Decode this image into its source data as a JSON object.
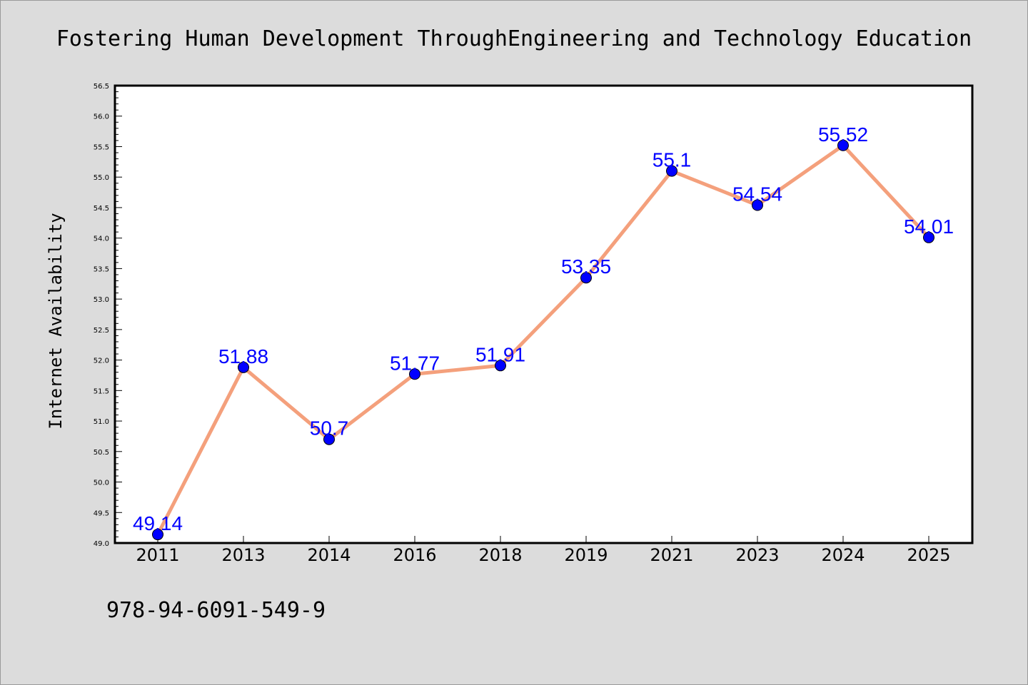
{
  "chart_data": {
    "type": "line",
    "title": "Fostering Human Development ThroughEngineering and Technology Education",
    "xlabel": "",
    "ylabel": "Internet Availability",
    "categories": [
      "2011",
      "2013",
      "2014",
      "2016",
      "2018",
      "2019",
      "2021",
      "2023",
      "2024",
      "2025"
    ],
    "series": [
      {
        "values": [
          49.14,
          51.88,
          50.7,
          51.77,
          51.91,
          53.35,
          55.1,
          54.54,
          55.52,
          54.01
        ]
      }
    ],
    "data_labels": [
      "49.14",
      "51.88",
      "50.7",
      "51.77",
      "51.91",
      "53.35",
      "55.1",
      "54.54",
      "55.52",
      "54.01"
    ],
    "ylim": [
      49.0,
      56.5
    ],
    "yticks": [
      "49.0",
      "49.5",
      "50.0",
      "50.5",
      "51.0",
      "51.5",
      "52.0",
      "52.5",
      "53.0",
      "53.5",
      "54.0",
      "54.5",
      "55.0",
      "55.5",
      "56.0",
      "56.5"
    ],
    "grid": false,
    "colors": {
      "line": "#f4a07c",
      "marker": "#0000ff",
      "label": "#0000ff",
      "background": "#dcdcdc",
      "plot_area": "#ffffff"
    }
  },
  "footer": {
    "text": "978-94-6091-549-9"
  }
}
